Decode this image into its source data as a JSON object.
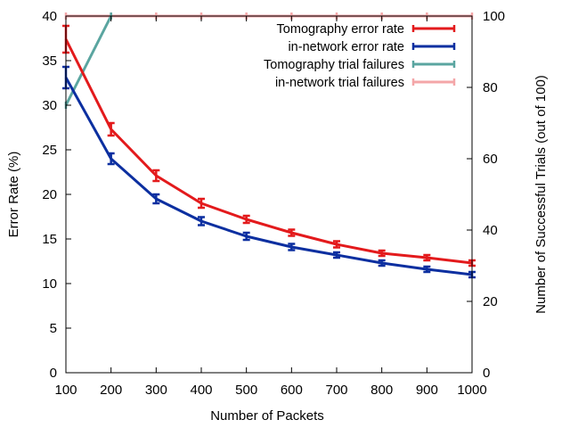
{
  "chart_data": {
    "type": "line",
    "x": [
      100,
      200,
      300,
      400,
      500,
      600,
      700,
      800,
      900,
      1000
    ],
    "xlabel": "Number of Packets",
    "ylabel": "Error Rate (%)",
    "y2label": "Number of Successful Trials (out of 100)",
    "xlim": [
      100,
      1000
    ],
    "ylim": [
      0,
      40
    ],
    "y2lim": [
      0,
      100
    ],
    "xticks": [
      "100",
      "200",
      "300",
      "400",
      "500",
      "600",
      "700",
      "800",
      "900",
      "1000"
    ],
    "yticks": [
      "0",
      "5",
      "10",
      "15",
      "20",
      "25",
      "30",
      "35",
      "40"
    ],
    "y2ticks": [
      "0",
      "20",
      "40",
      "60",
      "80",
      "100"
    ],
    "grid": false,
    "legend_position": "top-right",
    "series": [
      {
        "name": "Tomography error rate",
        "axis": "left",
        "color": "#e31a1c",
        "values": [
          37.4,
          27.3,
          22.1,
          19.0,
          17.2,
          15.7,
          14.4,
          13.4,
          12.9,
          12.3
        ],
        "errors": [
          1.5,
          0.7,
          0.6,
          0.5,
          0.4,
          0.35,
          0.35,
          0.3,
          0.3,
          0.3
        ]
      },
      {
        "name": "in-network error rate",
        "axis": "left",
        "color": "#0c2fa0",
        "values": [
          33.1,
          24.0,
          19.5,
          17.0,
          15.3,
          14.1,
          13.2,
          12.3,
          11.6,
          11.0
        ],
        "errors": [
          1.2,
          0.6,
          0.5,
          0.45,
          0.4,
          0.35,
          0.3,
          0.3,
          0.3,
          0.3
        ]
      },
      {
        "name": "Tomography trial failures",
        "axis": "right",
        "color": "#5aa5a0",
        "x": [
          100,
          200
        ],
        "values": [
          75,
          100
        ]
      },
      {
        "name": "in-network trial failures",
        "axis": "right",
        "color": "#f4a6a8",
        "values": [
          100,
          100,
          100,
          100,
          100,
          100,
          100,
          100,
          100,
          100
        ]
      }
    ]
  }
}
